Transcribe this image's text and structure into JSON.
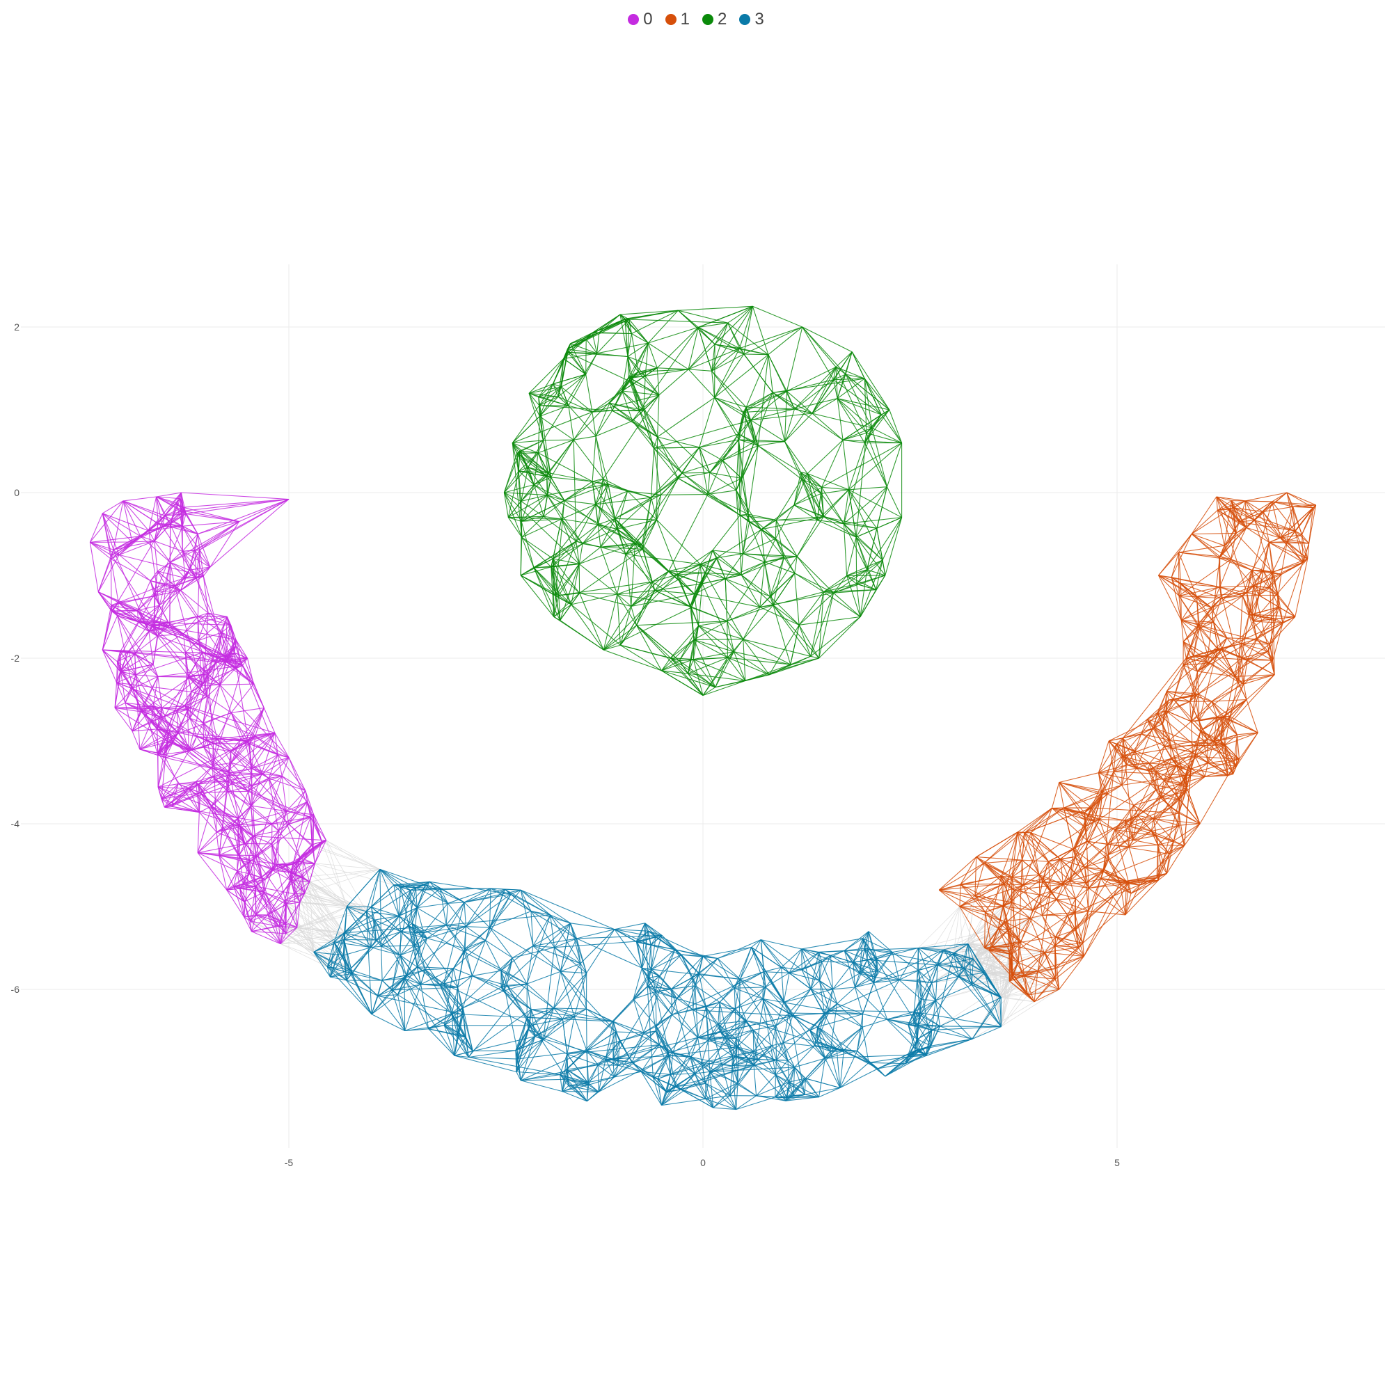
{
  "chart_data": {
    "type": "network",
    "title": "",
    "xlabel": "",
    "ylabel": "",
    "xlim": [
      -10.1,
      6.9
    ],
    "ylim": [
      -8.0,
      2.8
    ],
    "x_ticks": [
      -5,
      0,
      5
    ],
    "y_ticks": [
      2,
      0,
      -2,
      -4,
      -6
    ],
    "grid": true,
    "legend": {
      "position": "top",
      "entries": [
        {
          "label": "0",
          "color": "#c42be0"
        },
        {
          "label": "1",
          "color": "#d64f0a"
        },
        {
          "label": "2",
          "color": "#0a8a0a"
        },
        {
          "label": "3",
          "color": "#0a7aa8"
        }
      ]
    },
    "bridge_edge_color": "#d9d9d9",
    "clusters": [
      {
        "name": "0",
        "color": "#c42be0",
        "shape_path": [
          [
            -7.25,
            -0.25
          ],
          [
            -7.0,
            -0.1
          ],
          [
            -6.6,
            -0.05
          ],
          [
            -6.3,
            -0.0
          ],
          [
            -6.1,
            -0.5
          ],
          [
            -5.95,
            -0.9
          ],
          [
            -5.7,
            -1.6
          ],
          [
            -5.5,
            -2.0
          ],
          [
            -5.3,
            -2.6
          ],
          [
            -5.0,
            -3.2
          ],
          [
            -4.8,
            -3.6
          ],
          [
            -4.55,
            -4.2
          ],
          [
            -4.75,
            -4.7
          ],
          [
            -4.9,
            -5.25
          ],
          [
            -5.1,
            -5.45
          ],
          [
            -5.45,
            -5.3
          ],
          [
            -5.75,
            -4.8
          ],
          [
            -6.1,
            -4.35
          ],
          [
            -6.5,
            -3.8
          ],
          [
            -6.8,
            -3.1
          ],
          [
            -7.1,
            -2.6
          ],
          [
            -7.25,
            -1.9
          ],
          [
            -7.3,
            -1.2
          ],
          [
            -7.4,
            -0.6
          ]
        ],
        "center_path": [
          [
            -7.0,
            -0.4
          ],
          [
            -6.85,
            -1.2
          ],
          [
            -6.75,
            -1.9
          ],
          [
            -6.5,
            -2.6
          ],
          [
            -6.2,
            -3.3
          ],
          [
            -5.8,
            -3.9
          ],
          [
            -5.3,
            -4.5
          ],
          [
            -5.0,
            -5.0
          ]
        ],
        "node_count": 230,
        "extra_points": [
          [
            -5.0,
            -0.08
          ],
          [
            -5.6,
            -0.35
          ]
        ]
      },
      {
        "name": "1",
        "color": "#d64f0a",
        "shape_path": [
          [
            6.2,
            -0.05
          ],
          [
            6.55,
            -0.1
          ],
          [
            7.05,
            -0.0
          ],
          [
            7.4,
            -0.15
          ],
          [
            7.3,
            -0.8
          ],
          [
            7.15,
            -1.5
          ],
          [
            6.9,
            -2.2
          ],
          [
            6.7,
            -2.9
          ],
          [
            6.4,
            -3.4
          ],
          [
            6.0,
            -4.0
          ],
          [
            5.6,
            -4.6
          ],
          [
            5.1,
            -5.1
          ],
          [
            4.6,
            -5.6
          ],
          [
            4.3,
            -6.0
          ],
          [
            4.0,
            -6.15
          ],
          [
            3.7,
            -5.9
          ],
          [
            3.4,
            -5.5
          ],
          [
            3.1,
            -5.0
          ],
          [
            2.85,
            -4.8
          ],
          [
            3.3,
            -4.4
          ],
          [
            3.8,
            -4.1
          ],
          [
            4.3,
            -3.5
          ],
          [
            4.9,
            -3.0
          ],
          [
            5.6,
            -2.4
          ],
          [
            5.8,
            -1.8
          ],
          [
            5.5,
            -1.0
          ],
          [
            5.9,
            -0.5
          ]
        ],
        "center_path": [
          [
            6.85,
            -0.3
          ],
          [
            6.75,
            -1.1
          ],
          [
            6.55,
            -1.9
          ],
          [
            6.2,
            -2.7
          ],
          [
            5.7,
            -3.5
          ],
          [
            5.1,
            -4.3
          ],
          [
            4.5,
            -5.0
          ],
          [
            4.0,
            -5.6
          ],
          [
            3.6,
            -5.8
          ]
        ],
        "node_count": 260,
        "extra_points": []
      },
      {
        "name": "2",
        "color": "#0a8a0a",
        "shape_path": [
          [
            -1.6,
            1.8
          ],
          [
            -1.0,
            2.15
          ],
          [
            -0.3,
            2.2
          ],
          [
            0.3,
            2.05
          ],
          [
            0.6,
            2.25
          ],
          [
            1.2,
            2.0
          ],
          [
            1.8,
            1.7
          ],
          [
            2.25,
            1.0
          ],
          [
            2.4,
            0.6
          ],
          [
            2.4,
            -0.3
          ],
          [
            2.2,
            -1.0
          ],
          [
            1.9,
            -1.5
          ],
          [
            1.4,
            -2.0
          ],
          [
            0.8,
            -2.2
          ],
          [
            0.0,
            -2.45
          ],
          [
            -0.5,
            -2.15
          ],
          [
            -1.2,
            -1.9
          ],
          [
            -1.8,
            -1.5
          ],
          [
            -2.2,
            -1.0
          ],
          [
            -2.35,
            -0.3
          ],
          [
            -2.4,
            0.0
          ],
          [
            -2.3,
            0.6
          ],
          [
            -2.1,
            1.2
          ]
        ],
        "center_path": [],
        "node_count": 210,
        "extra_points": []
      },
      {
        "name": "3",
        "color": "#0a7aa8",
        "shape_path": [
          [
            -4.7,
            -5.55
          ],
          [
            -4.3,
            -5.0
          ],
          [
            -3.9,
            -4.55
          ],
          [
            -3.3,
            -4.7
          ],
          [
            -2.2,
            -4.8
          ],
          [
            -1.6,
            -5.2
          ],
          [
            -0.7,
            -5.2
          ],
          [
            0.0,
            -5.6
          ],
          [
            0.7,
            -5.4
          ],
          [
            1.4,
            -5.55
          ],
          [
            2.0,
            -5.3
          ],
          [
            2.6,
            -5.5
          ],
          [
            3.2,
            -5.45
          ],
          [
            3.4,
            -5.8
          ],
          [
            3.6,
            -6.1
          ],
          [
            3.6,
            -6.45
          ],
          [
            3.25,
            -6.6
          ],
          [
            2.7,
            -6.8
          ],
          [
            2.2,
            -7.05
          ],
          [
            1.4,
            -7.3
          ],
          [
            0.4,
            -7.45
          ],
          [
            -0.5,
            -7.4
          ],
          [
            -1.4,
            -7.35
          ],
          [
            -2.2,
            -7.1
          ],
          [
            -3.0,
            -6.8
          ],
          [
            -3.6,
            -6.5
          ],
          [
            -4.0,
            -6.3
          ],
          [
            -4.5,
            -5.85
          ]
        ],
        "center_path": [
          [
            -4.4,
            -5.7
          ],
          [
            -3.6,
            -5.6
          ],
          [
            -2.8,
            -6.1
          ],
          [
            -2.0,
            -6.5
          ],
          [
            -1.2,
            -6.7
          ],
          [
            -0.3,
            -6.9
          ],
          [
            0.6,
            -6.9
          ],
          [
            1.4,
            -6.7
          ],
          [
            2.2,
            -6.4
          ],
          [
            3.0,
            -6.1
          ]
        ],
        "node_count": 300,
        "extra_points": []
      }
    ]
  }
}
